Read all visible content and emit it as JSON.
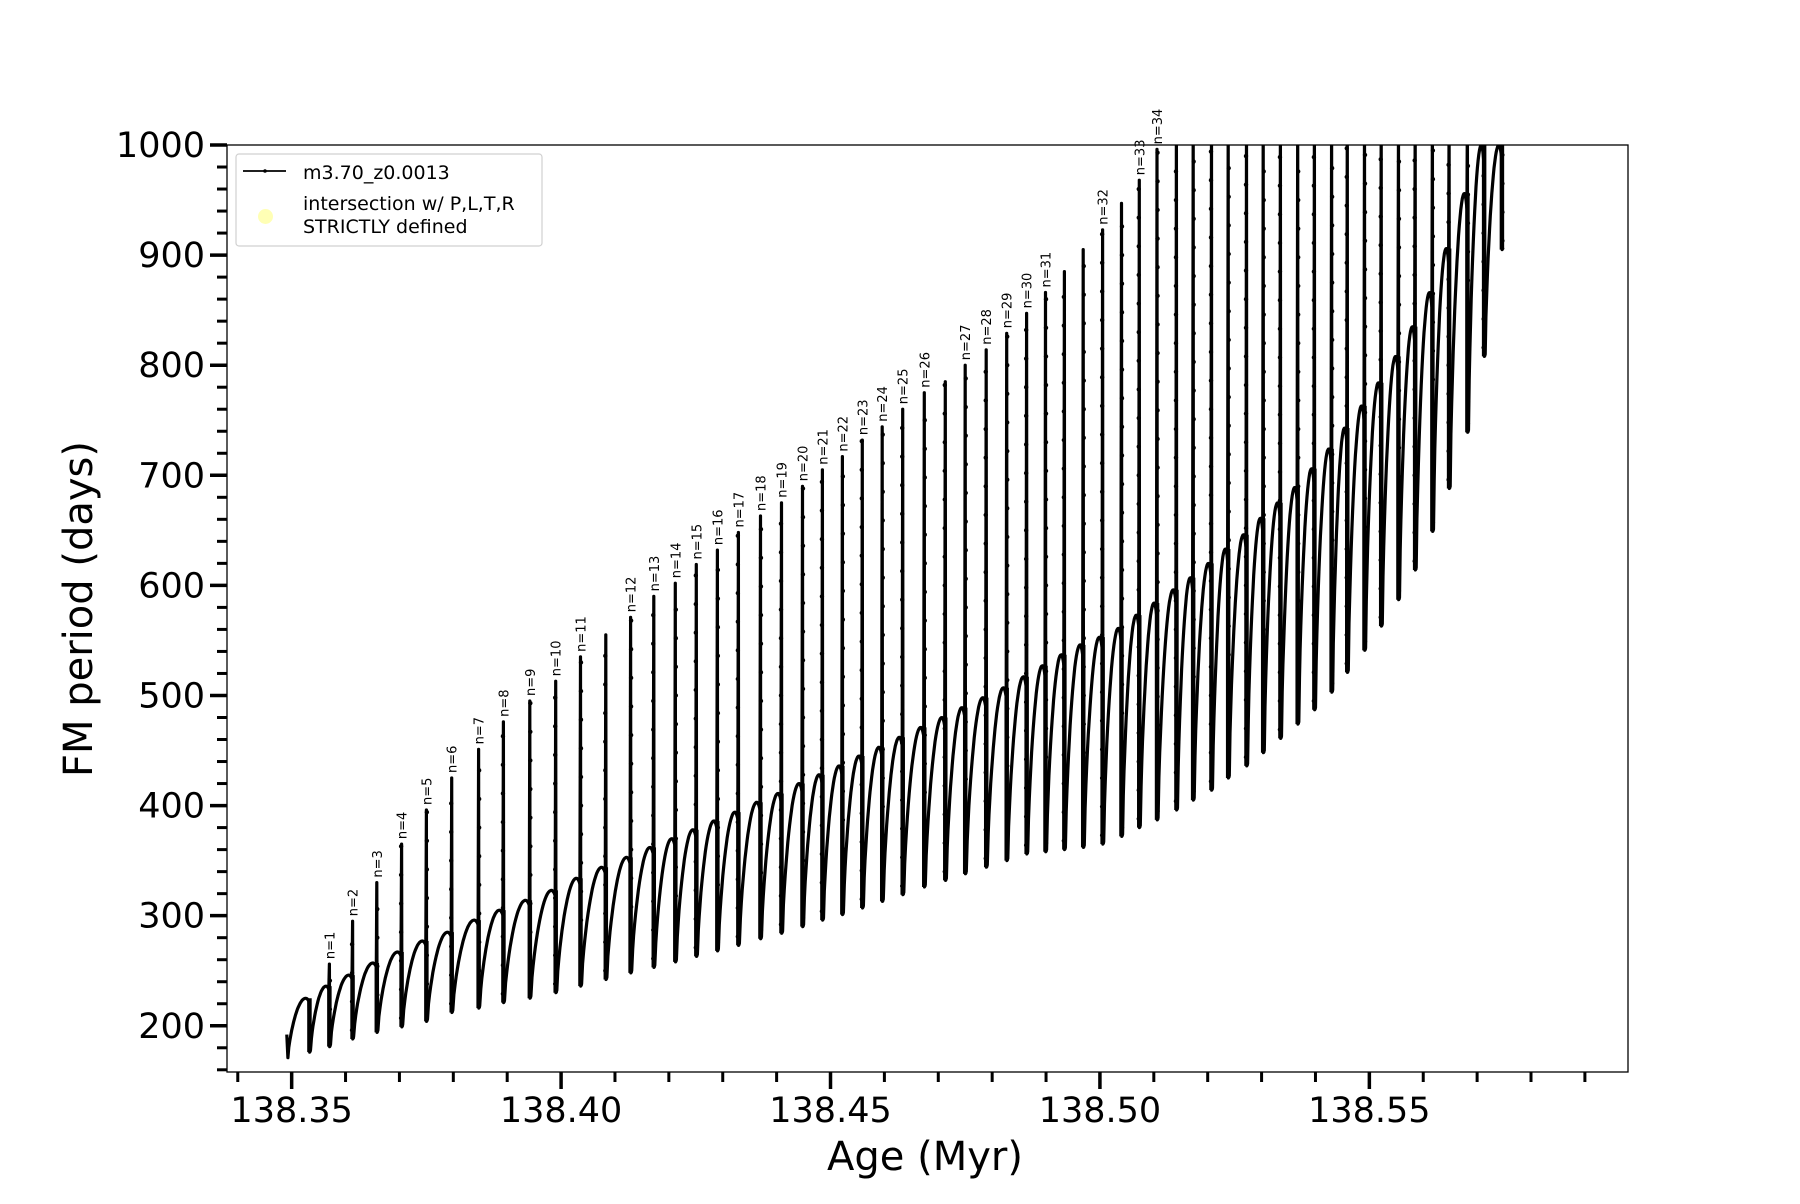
{
  "chart_data": {
    "type": "line",
    "xlabel": "Age (Myr)",
    "ylabel": "FM period (days)",
    "xlim": [
      138.338,
      138.598
    ],
    "ylim": [
      158,
      1000
    ],
    "x_ticks": [
      "138.35",
      "138.40",
      "138.45",
      "138.50",
      "138.55"
    ],
    "x_minor_step": 0.01,
    "y_ticks": [
      "200",
      "300",
      "400",
      "500",
      "600",
      "700",
      "800",
      "900",
      "1000"
    ],
    "y_minor_step": 20,
    "grid": false,
    "legend_position": "top-left",
    "legend": [
      {
        "label": "m3.70_z0.0013",
        "marker": "line-with-dot",
        "color": "#000000"
      },
      {
        "label": "intersection w/ P,L,T,R\nSTRICTLY defined",
        "marker": "circle",
        "color": "#ffffa8"
      }
    ],
    "series": [
      {
        "name": "m3.70_z0.0013",
        "color": "#000000",
        "start": {
          "age": 138.3491,
          "period": 192,
          "first_min": 171
        },
        "pulses": [
          {
            "age": 138.3533,
            "peak": null,
            "trough": 176,
            "pre_max": 225,
            "label": ""
          },
          {
            "age": 138.357,
            "peak": 256,
            "trough": 181,
            "pre_max": 236,
            "label": "n=1"
          },
          {
            "age": 138.3613,
            "peak": 295,
            "trough": 188,
            "pre_max": 246,
            "label": "n=2"
          },
          {
            "age": 138.3658,
            "peak": 330,
            "trough": 194,
            "pre_max": 257,
            "label": "n=3"
          },
          {
            "age": 138.3704,
            "peak": 365,
            "trough": 199,
            "pre_max": 267,
            "label": "n=4"
          },
          {
            "age": 138.375,
            "peak": 396,
            "trough": 204,
            "pre_max": 277,
            "label": "n=5"
          },
          {
            "age": 138.3797,
            "peak": 425,
            "trough": 212,
            "pre_max": 285,
            "label": "n=6"
          },
          {
            "age": 138.3847,
            "peak": 451,
            "trough": 216,
            "pre_max": 296,
            "label": "n=7"
          },
          {
            "age": 138.3893,
            "peak": 476,
            "trough": 221,
            "pre_max": 305,
            "label": "n=8"
          },
          {
            "age": 138.3942,
            "peak": 495,
            "trough": 225,
            "pre_max": 314,
            "label": "n=9"
          },
          {
            "age": 138.399,
            "peak": 513,
            "trough": 230,
            "pre_max": 323,
            "label": "n=10"
          },
          {
            "age": 138.4036,
            "peak": 535,
            "trough": 236,
            "pre_max": 334,
            "label": "n=11"
          },
          {
            "age": 138.4083,
            "peak": 555,
            "trough": 242,
            "pre_max": 344,
            "label": ""
          },
          {
            "age": 138.4129,
            "peak": 571,
            "trough": 248,
            "pre_max": 353,
            "label": "n=12"
          },
          {
            "age": 138.4172,
            "peak": 590,
            "trough": 253,
            "pre_max": 362,
            "label": "n=13"
          },
          {
            "age": 138.4212,
            "peak": 602,
            "trough": 258,
            "pre_max": 370,
            "label": "n=14"
          },
          {
            "age": 138.4251,
            "peak": 619,
            "trough": 263,
            "pre_max": 378,
            "label": "n=15"
          },
          {
            "age": 138.429,
            "peak": 632,
            "trough": 268,
            "pre_max": 386,
            "label": "n=16"
          },
          {
            "age": 138.4329,
            "peak": 648,
            "trough": 273,
            "pre_max": 394,
            "label": "n=17"
          },
          {
            "age": 138.437,
            "peak": 663,
            "trough": 279,
            "pre_max": 403,
            "label": "n=18"
          },
          {
            "age": 138.4409,
            "peak": 675,
            "trough": 284,
            "pre_max": 411,
            "label": "n=19"
          },
          {
            "age": 138.4448,
            "peak": 690,
            "trough": 290,
            "pre_max": 420,
            "label": "n=20"
          },
          {
            "age": 138.4485,
            "peak": 705,
            "trough": 296,
            "pre_max": 428,
            "label": "n=21"
          },
          {
            "age": 138.4522,
            "peak": 717,
            "trough": 301,
            "pre_max": 436,
            "label": "n=22"
          },
          {
            "age": 138.4559,
            "peak": 732,
            "trough": 307,
            "pre_max": 445,
            "label": "n=23"
          },
          {
            "age": 138.4596,
            "peak": 744,
            "trough": 313,
            "pre_max": 453,
            "label": "n=24"
          },
          {
            "age": 138.4634,
            "peak": 760,
            "trough": 319,
            "pre_max": 462,
            "label": "n=25"
          },
          {
            "age": 138.4674,
            "peak": 775,
            "trough": 326,
            "pre_max": 471,
            "label": "n=26"
          },
          {
            "age": 138.4713,
            "peak": 785,
            "trough": 332,
            "pre_max": 480,
            "label": ""
          },
          {
            "age": 138.475,
            "peak": 800,
            "trough": 338,
            "pre_max": 489,
            "label": "n=27"
          },
          {
            "age": 138.4789,
            "peak": 814,
            "trough": 344,
            "pre_max": 498,
            "label": "n=28"
          },
          {
            "age": 138.4827,
            "peak": 829,
            "trough": 350,
            "pre_max": 507,
            "label": "n=29"
          },
          {
            "age": 138.4864,
            "peak": 847,
            "trough": 356,
            "pre_max": 517,
            "label": "n=30"
          },
          {
            "age": 138.4899,
            "peak": 866,
            "trough": 358,
            "pre_max": 527,
            "label": "n=31"
          },
          {
            "age": 138.4934,
            "peak": 885,
            "trough": 360,
            "pre_max": 537,
            "label": ""
          },
          {
            "age": 138.4969,
            "peak": 905,
            "trough": 362,
            "pre_max": 546,
            "label": ""
          },
          {
            "age": 138.5005,
            "peak": 923,
            "trough": 365,
            "pre_max": 553,
            "label": "n=32"
          },
          {
            "age": 138.504,
            "peak": 947,
            "trough": 372,
            "pre_max": 561,
            "label": ""
          },
          {
            "age": 138.5073,
            "peak": 968,
            "trough": 380,
            "pre_max": 573,
            "label": "n=33"
          },
          {
            "age": 138.5106,
            "peak": 996,
            "trough": 387,
            "pre_max": 584,
            "label": "n=34"
          },
          {
            "age": 138.5142,
            "peak": ">1000",
            "trough": 396,
            "pre_max": 596,
            "label": ""
          },
          {
            "age": 138.5173,
            "peak": ">1000",
            "trough": 405,
            "pre_max": 607,
            "label": ""
          },
          {
            "age": 138.5207,
            "peak": ">1000",
            "trough": 414,
            "pre_max": 620,
            "label": ""
          },
          {
            "age": 138.5238,
            "peak": ">1000",
            "trough": 425,
            "pre_max": 633,
            "label": ""
          },
          {
            "age": 138.5272,
            "peak": ">1000",
            "trough": 436,
            "pre_max": 646,
            "label": ""
          },
          {
            "age": 138.5303,
            "peak": ">1000",
            "trough": 448,
            "pre_max": 661,
            "label": ""
          },
          {
            "age": 138.5335,
            "peak": ">1000",
            "trough": 461,
            "pre_max": 675,
            "label": ""
          },
          {
            "age": 138.5367,
            "peak": ">1000",
            "trough": 474,
            "pre_max": 689,
            "label": ""
          },
          {
            "age": 138.5398,
            "peak": ">1000",
            "trough": 487,
            "pre_max": 706,
            "label": ""
          },
          {
            "age": 138.543,
            "peak": ">1000",
            "trough": 503,
            "pre_max": 724,
            "label": ""
          },
          {
            "age": 138.5459,
            "peak": ">1000",
            "trough": 521,
            "pre_max": 743,
            "label": ""
          },
          {
            "age": 138.5491,
            "peak": ">1000",
            "trough": 541,
            "pre_max": 763,
            "label": ""
          },
          {
            "age": 138.5522,
            "peak": ">1000",
            "trough": 563,
            "pre_max": 784,
            "label": ""
          },
          {
            "age": 138.5554,
            "peak": ">1000",
            "trough": 587,
            "pre_max": 808,
            "label": ""
          },
          {
            "age": 138.5585,
            "peak": ">1000",
            "trough": 614,
            "pre_max": 835,
            "label": ""
          },
          {
            "age": 138.5617,
            "peak": ">1000",
            "trough": 649,
            "pre_max": 866,
            "label": ""
          },
          {
            "age": 138.5648,
            "peak": ">1000",
            "trough": 688,
            "pre_max": 906,
            "label": ""
          },
          {
            "age": 138.5682,
            "peak": ">1000",
            "trough": 739,
            "pre_max": 956,
            "label": ""
          },
          {
            "age": 138.5713,
            "peak": ">1000",
            "trough": 808,
            "pre_max": 1000,
            "label": ""
          },
          {
            "age": 138.5746,
            "peak": ">1000",
            "trough": 905,
            "pre_max": 1000,
            "label": ""
          }
        ]
      }
    ]
  }
}
